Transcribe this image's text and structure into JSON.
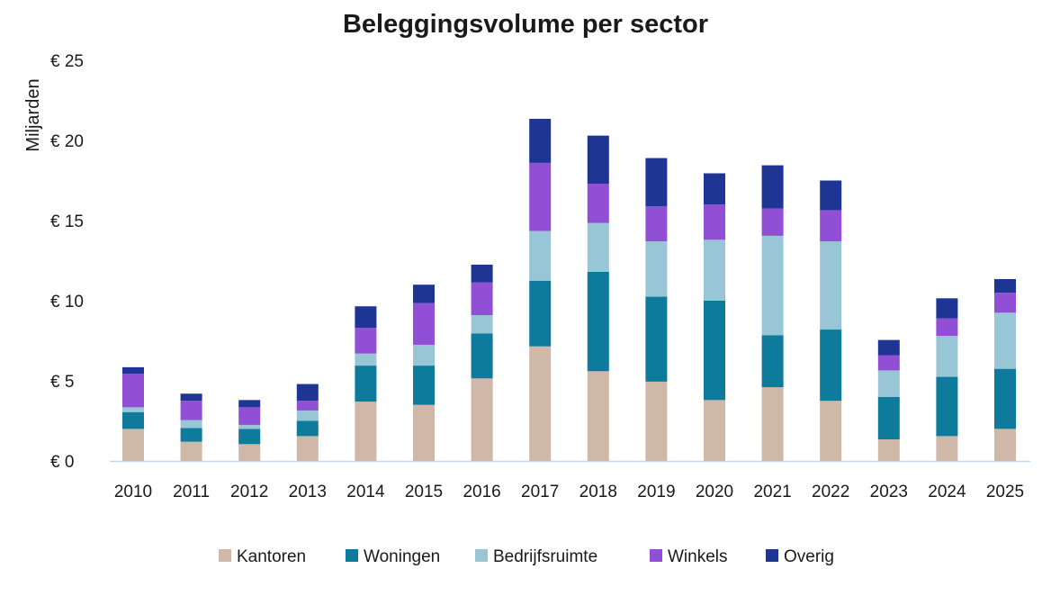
{
  "chart_data": {
    "type": "bar",
    "stacked": true,
    "title": "Beleggingsvolume per sector",
    "xlabel": "",
    "ylabel": "Miljarden",
    "ylim": [
      0,
      25
    ],
    "yticks": [
      0,
      5,
      10,
      15,
      20,
      25
    ],
    "ytick_labels": [
      "€ 0",
      "€ 5",
      "€ 10",
      "€ 15",
      "€ 20",
      "€ 25"
    ],
    "grid": false,
    "legend_position": "bottom",
    "categories": [
      "2010",
      "2011",
      "2012",
      "2013",
      "2014",
      "2015",
      "2016",
      "2017",
      "2018",
      "2019",
      "2020",
      "2021",
      "2022",
      "2023",
      "2024",
      "2025"
    ],
    "series": [
      {
        "name": "Kantoren",
        "color": "#d0b8a8",
        "values": [
          2.0,
          1.2,
          1.05,
          1.55,
          3.7,
          3.5,
          5.15,
          7.15,
          5.6,
          4.95,
          3.8,
          4.6,
          3.75,
          1.35,
          1.55,
          2.0
        ]
      },
      {
        "name": "Woningen",
        "color": "#0e7a9c",
        "values": [
          1.05,
          0.85,
          0.95,
          0.95,
          2.25,
          2.45,
          2.8,
          4.1,
          6.2,
          5.3,
          6.2,
          3.25,
          4.45,
          2.65,
          3.7,
          3.75
        ]
      },
      {
        "name": "Bedrijfsruimte",
        "color": "#98c6d6",
        "values": [
          0.3,
          0.5,
          0.25,
          0.65,
          0.75,
          1.3,
          1.15,
          3.1,
          3.05,
          3.45,
          3.8,
          6.2,
          5.5,
          1.65,
          2.55,
          3.5
        ]
      },
      {
        "name": "Winkels",
        "color": "#914fd6",
        "values": [
          2.1,
          1.2,
          1.1,
          0.6,
          1.6,
          2.6,
          2.05,
          4.25,
          2.45,
          2.2,
          2.2,
          1.7,
          1.95,
          0.95,
          1.1,
          1.25
        ]
      },
      {
        "name": "Overig",
        "color": "#1f3594",
        "values": [
          0.4,
          0.45,
          0.45,
          1.05,
          1.35,
          1.15,
          1.1,
          2.75,
          3.0,
          3.0,
          1.95,
          2.7,
          1.85,
          0.95,
          1.25,
          0.85
        ]
      }
    ]
  }
}
